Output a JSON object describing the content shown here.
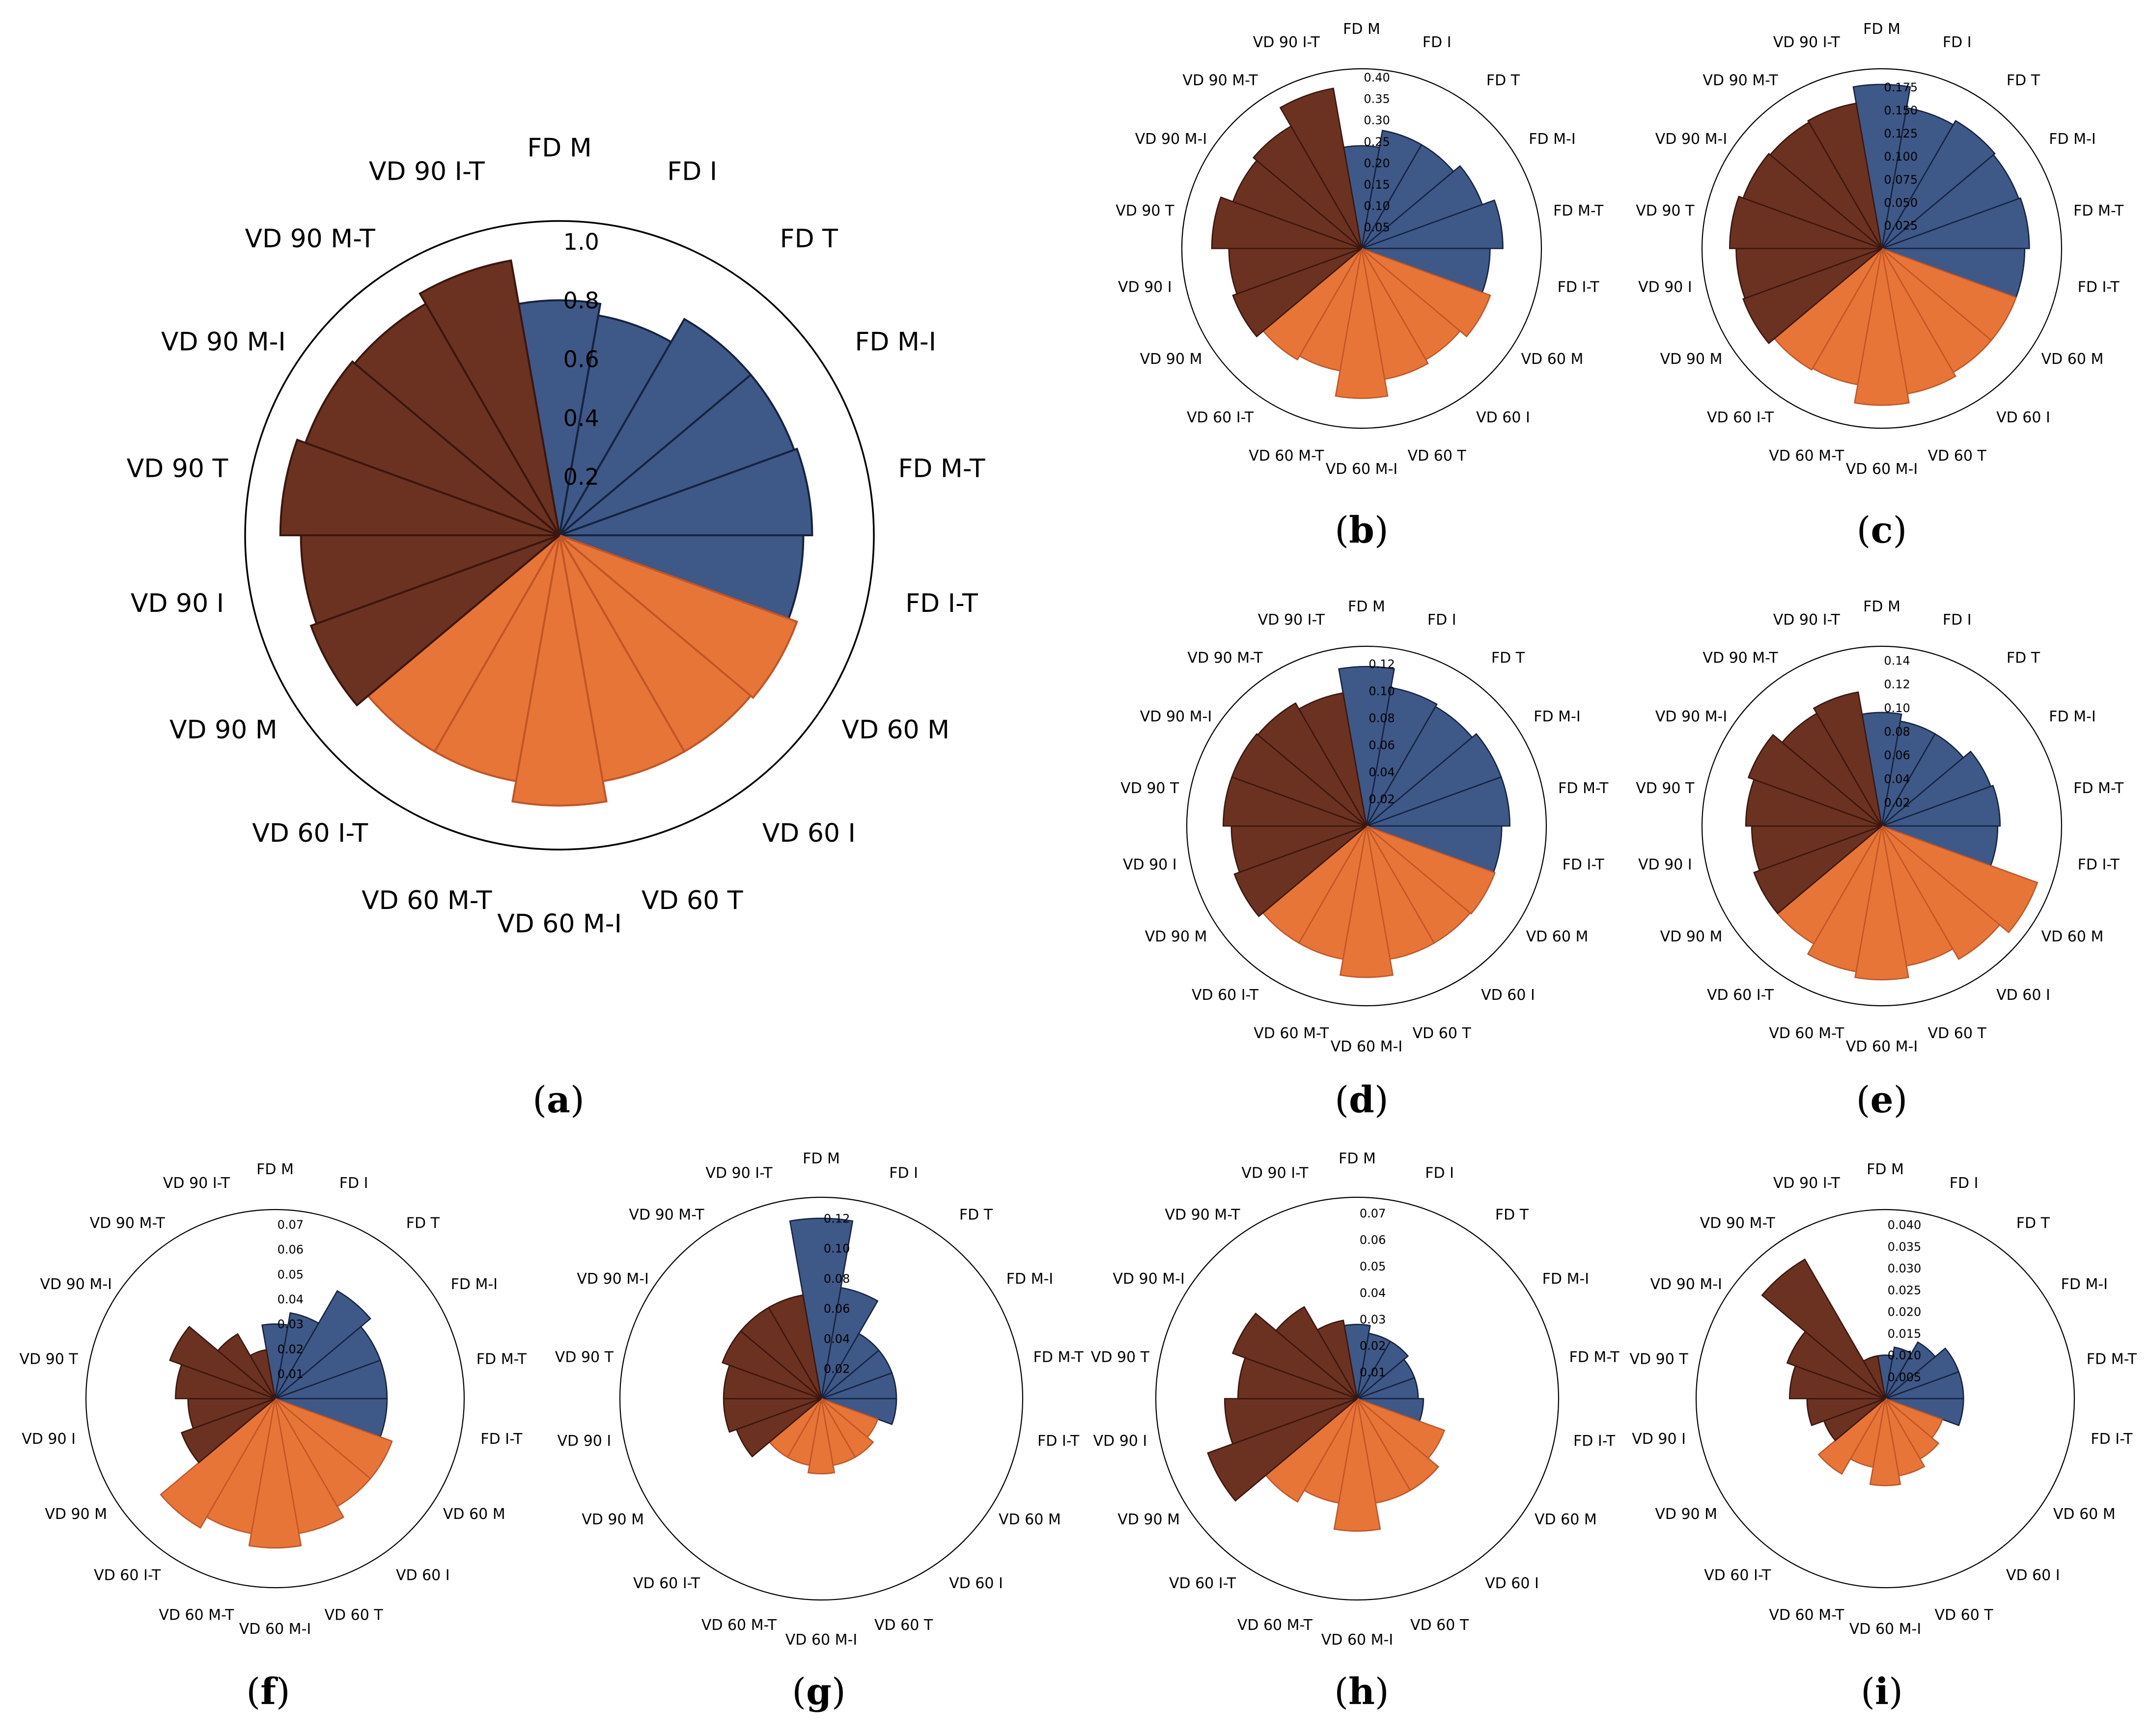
{
  "categories": [
    "FD M",
    "FD I",
    "FD T",
    "FD M-I",
    "FD M-T",
    "FD I-T",
    "VD 60 M",
    "VD 60 I",
    "VD 60 T",
    "VD 60 M-I",
    "VD 60 M-T",
    "VD 60 I-T",
    "VD 90 M",
    "VD 90 I",
    "VD 90 T",
    "VD 90 M-I",
    "VD 90 M-T",
    "VD 90 I-T"
  ],
  "colors": {
    "fd_fill": "#3e5888",
    "fd_edge": "#15233f",
    "vd60_fill": "#e77538",
    "vd60_edge": "#c25526",
    "vd90_fill": "#6b3121",
    "vd90_edge": "#3b160d",
    "axis": "#000000",
    "bar_divider": "#000000"
  },
  "chart_data": [
    {
      "id": "a",
      "type": "polar-bar",
      "panel_label": [
        "(",
        "a",
        ")"
      ],
      "rmax": 1.07,
      "ticks": [
        "0.2",
        "0.4",
        "0.6",
        "0.8",
        "1.0"
      ],
      "tick_values": [
        0.2,
        0.4,
        0.6,
        0.8,
        1.0
      ],
      "values": [
        0.8,
        0.76,
        0.85,
        0.85,
        0.86,
        0.83,
        0.86,
        0.85,
        0.85,
        0.92,
        0.85,
        0.85,
        0.9,
        0.88,
        0.95,
        0.92,
        0.91,
        0.95
      ]
    },
    {
      "id": "b",
      "type": "polar-bar",
      "panel_label": [
        "(",
        "b",
        ")"
      ],
      "rmax": 0.42,
      "ticks": [
        "0.05",
        "0.10",
        "0.15",
        "0.20",
        "0.25",
        "0.30",
        "0.35",
        "0.40"
      ],
      "tick_values": [
        0.05,
        0.1,
        0.15,
        0.2,
        0.25,
        0.3,
        0.35,
        0.4
      ],
      "values": [
        0.24,
        0.28,
        0.28,
        0.3,
        0.33,
        0.3,
        0.32,
        0.3,
        0.31,
        0.35,
        0.29,
        0.3,
        0.32,
        0.31,
        0.35,
        0.32,
        0.33,
        0.38
      ]
    },
    {
      "id": "c",
      "type": "polar-bar",
      "panel_label": [
        "(",
        "c",
        ")"
      ],
      "rmax": 0.195,
      "ticks": [
        "0.025",
        "0.050",
        "0.075",
        "0.100",
        "0.125",
        "0.150",
        "0.175"
      ],
      "tick_values": [
        0.025,
        0.05,
        0.075,
        0.1,
        0.125,
        0.15,
        0.175
      ],
      "values": [
        0.178,
        0.155,
        0.16,
        0.158,
        0.16,
        0.155,
        0.155,
        0.155,
        0.16,
        0.17,
        0.15,
        0.152,
        0.16,
        0.158,
        0.165,
        0.16,
        0.158,
        0.16
      ]
    },
    {
      "id": "d",
      "type": "polar-bar",
      "panel_label": [
        "(",
        "d",
        ")"
      ],
      "rmax": 0.133,
      "ticks": [
        "0.02",
        "0.04",
        "0.06",
        "0.08",
        "0.10",
        "0.12"
      ],
      "tick_values": [
        0.02,
        0.04,
        0.06,
        0.08,
        0.1,
        0.12
      ],
      "values": [
        0.118,
        0.104,
        0.102,
        0.106,
        0.106,
        0.1,
        0.101,
        0.1,
        0.1,
        0.112,
        0.1,
        0.1,
        0.104,
        0.1,
        0.106,
        0.106,
        0.105,
        0.1
      ]
    },
    {
      "id": "e",
      "type": "polar-bar",
      "panel_label": [
        "(",
        "e",
        ")"
      ],
      "rmax": 0.152,
      "ticks": [
        "0.02",
        "0.04",
        "0.06",
        "0.08",
        "0.10",
        "0.12",
        "0.14"
      ],
      "tick_values": [
        0.02,
        0.04,
        0.06,
        0.08,
        0.1,
        0.12,
        0.14
      ],
      "values": [
        0.096,
        0.09,
        0.09,
        0.098,
        0.1,
        0.098,
        0.14,
        0.13,
        0.12,
        0.13,
        0.125,
        0.115,
        0.115,
        0.11,
        0.115,
        0.12,
        0.11,
        0.115
      ]
    },
    {
      "id": "f",
      "type": "polar-bar",
      "panel_label": [
        "(",
        "f",
        ")"
      ],
      "rmax": 0.076,
      "ticks": [
        "0.01",
        "0.02",
        "0.03",
        "0.04",
        "0.05",
        "0.06",
        "0.07"
      ],
      "tick_values": [
        0.01,
        0.02,
        0.03,
        0.04,
        0.05,
        0.06,
        0.07
      ],
      "values": [
        0.03,
        0.035,
        0.05,
        0.045,
        0.045,
        0.045,
        0.05,
        0.05,
        0.055,
        0.06,
        0.055,
        0.06,
        0.04,
        0.035,
        0.04,
        0.045,
        0.03,
        0.02
      ]
    },
    {
      "id": "g",
      "type": "polar-bar",
      "panel_label": [
        "(",
        "g",
        ")"
      ],
      "rmax": 0.134,
      "ticks": [
        "0.02",
        "0.04",
        "0.06",
        "0.08",
        "0.10",
        "0.12"
      ],
      "tick_values": [
        0.02,
        0.04,
        0.06,
        0.08,
        0.1,
        0.12
      ],
      "values": [
        0.12,
        0.075,
        0.05,
        0.05,
        0.05,
        0.05,
        0.04,
        0.045,
        0.045,
        0.05,
        0.045,
        0.045,
        0.06,
        0.065,
        0.065,
        0.07,
        0.07,
        0.07
      ]
    },
    {
      "id": "h",
      "type": "polar-bar",
      "panel_label": [
        "(",
        "h",
        ")"
      ],
      "rmax": 0.076,
      "ticks": [
        "0.01",
        "0.02",
        "0.03",
        "0.04",
        "0.05",
        "0.06",
        "0.07"
      ],
      "tick_values": [
        0.01,
        0.02,
        0.03,
        0.04,
        0.05,
        0.06,
        0.07
      ],
      "values": [
        0.028,
        0.025,
        0.025,
        0.023,
        0.023,
        0.025,
        0.035,
        0.04,
        0.04,
        0.05,
        0.04,
        0.045,
        0.06,
        0.05,
        0.045,
        0.05,
        0.04,
        0.03
      ]
    },
    {
      "id": "i",
      "type": "polar-bar",
      "panel_label": [
        "(",
        "i",
        ")"
      ],
      "rmax": 0.0435,
      "ticks": [
        "0.005",
        "0.010",
        "0.015",
        "0.020",
        "0.025",
        "0.030",
        "0.035",
        "0.040"
      ],
      "tick_values": [
        0.005,
        0.01,
        0.015,
        0.02,
        0.025,
        0.03,
        0.035,
        0.04
      ],
      "values": [
        0.01,
        0.012,
        0.015,
        0.018,
        0.018,
        0.018,
        0.014,
        0.016,
        0.018,
        0.02,
        0.016,
        0.02,
        0.015,
        0.018,
        0.022,
        0.024,
        0.037,
        0.01
      ]
    }
  ]
}
